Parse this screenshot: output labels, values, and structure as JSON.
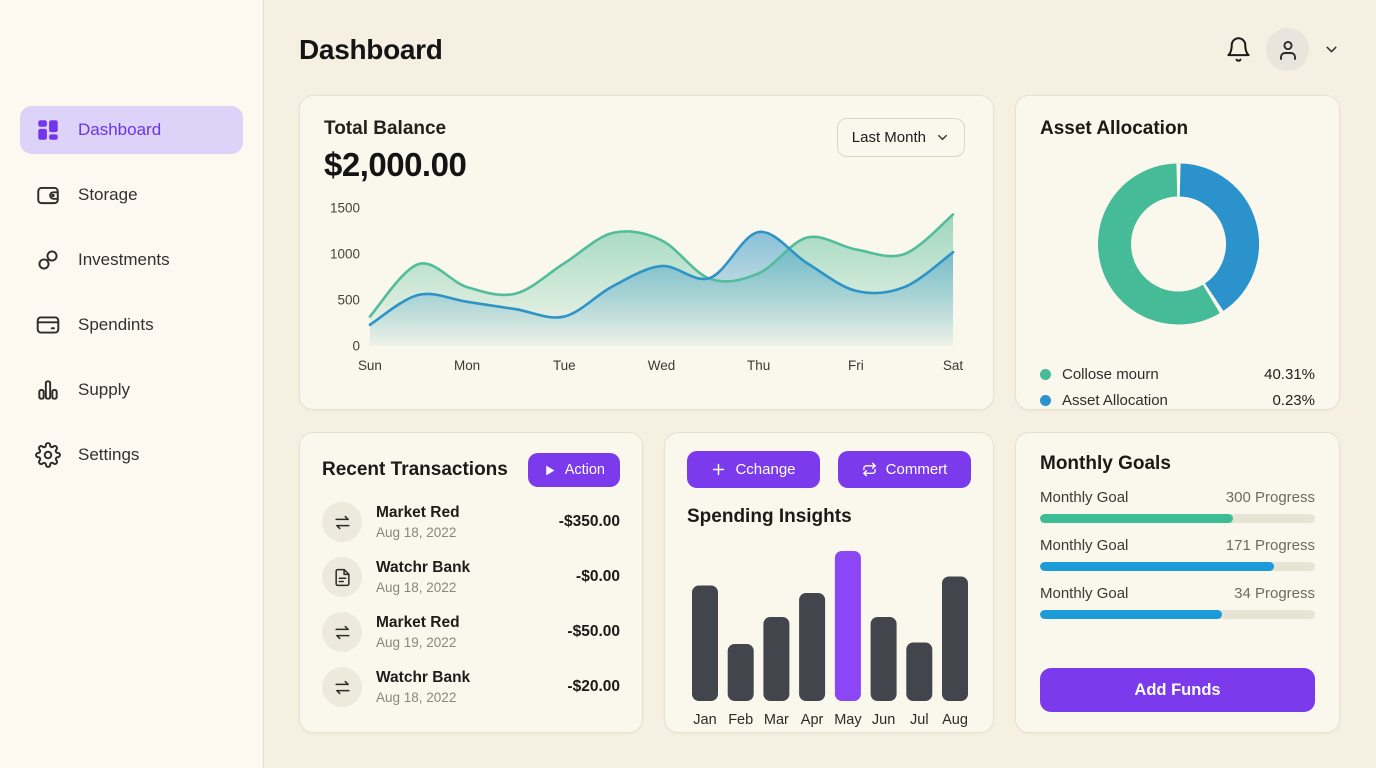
{
  "theme": {
    "accent": "#7c3aed",
    "accent_light": "#ddd2f8",
    "green": "#45bb98",
    "blue": "#2b92cc",
    "bar_dark": "#42454b",
    "bar_highlight": "#8b46f5"
  },
  "header": {
    "title": "Dashboard"
  },
  "sidebar": {
    "items": [
      {
        "label": "Dashboard",
        "icon": "grid-icon",
        "active": true
      },
      {
        "label": "Storage",
        "icon": "wallet-icon",
        "active": false
      },
      {
        "label": "Investments",
        "icon": "links-icon",
        "active": false
      },
      {
        "label": "Spendints",
        "icon": "card-icon",
        "active": false
      },
      {
        "label": "Supply",
        "icon": "bars-icon",
        "active": false
      },
      {
        "label": "Settings",
        "icon": "gear-icon",
        "active": false
      }
    ]
  },
  "balance_card": {
    "title": "Total Balance",
    "amount": "$2,000.00",
    "period_selector": "Last Month"
  },
  "asset_card": {
    "title": "Asset Allocation",
    "legend": [
      {
        "label": "Collose mourn",
        "value": "40.31%",
        "color": "#45bb98"
      },
      {
        "label": "Asset Allocation",
        "value": "0.23%",
        "color": "#2b92cc"
      }
    ]
  },
  "transactions_card": {
    "title": "Recent Transactions",
    "action_label": "Action",
    "items": [
      {
        "name": "Market Red",
        "date": "Aug 18, 2022",
        "amount": "-$350.00",
        "icon": "transfer-icon"
      },
      {
        "name": "Watchr Bank",
        "date": "Aug 18, 2022",
        "amount": "-$0.00",
        "icon": "document-icon"
      },
      {
        "name": "Market Red",
        "date": "Aug 19, 2022",
        "amount": "-$50.00",
        "icon": "transfer-icon"
      },
      {
        "name": "Watchr Bank",
        "date": "Aug 18, 2022",
        "amount": "-$20.00",
        "icon": "transfer-icon"
      }
    ]
  },
  "insights_card": {
    "title": "Spending Insights",
    "buttons": [
      {
        "label": "Cchange",
        "icon": "plus-icon"
      },
      {
        "label": "Commert",
        "icon": "repeat-icon"
      }
    ]
  },
  "goals_card": {
    "title": "Monthly Goals",
    "button_label": "Add Funds",
    "goals": [
      {
        "label": "Monthly Goal",
        "progress_label": "300 Progress",
        "percent": 70,
        "color": "#3dbd96"
      },
      {
        "label": "Monthly Goal",
        "progress_label": "171 Progress",
        "percent": 85,
        "color": "#1b9cd8"
      },
      {
        "label": "Monthly Goal",
        "progress_label": "34 Progress",
        "percent": 66,
        "color": "#1b9cd8"
      }
    ]
  },
  "chart_data": [
    {
      "type": "area",
      "title": "Total Balance weekly trend",
      "categories": [
        "Sun",
        "Mon",
        "Tue",
        "Wed",
        "Thu",
        "Fri",
        "Sat"
      ],
      "points_per_interval": 2,
      "ylim": [
        0,
        1500
      ],
      "yticks": [
        0,
        500,
        1000,
        1500
      ],
      "grid": false,
      "legend_position": "none",
      "series": [
        {
          "name": "green-series",
          "color": "#52bd9b",
          "values": [
            320,
            890,
            640,
            570,
            900,
            1230,
            1150,
            730,
            790,
            1180,
            1050,
            1000,
            1430
          ]
        },
        {
          "name": "blue-series",
          "color": "#2d93c8",
          "values": [
            230,
            555,
            480,
            400,
            320,
            650,
            870,
            740,
            1240,
            900,
            600,
            640,
            1020
          ]
        }
      ]
    },
    {
      "type": "donut",
      "title": "Asset Allocation",
      "start": "top",
      "clockwise": true,
      "slices": [
        {
          "label": "Asset Allocation",
          "value": 41,
          "color": "#2b92cc"
        },
        {
          "label": "Collose mourn",
          "value": 59,
          "color": "#45bb98"
        }
      ]
    },
    {
      "type": "bar",
      "title": "Spending Insights",
      "categories": [
        "Jan",
        "Feb",
        "Mar",
        "Apr",
        "May",
        "Jun",
        "Jul",
        "Aug"
      ],
      "values": [
        77,
        38,
        56,
        72,
        100,
        56,
        39,
        83
      ],
      "ylim": [
        0,
        100
      ],
      "bar_color": "#42454b",
      "highlight_index": 4,
      "highlight_color": "#8b46f5",
      "grid": false
    }
  ]
}
